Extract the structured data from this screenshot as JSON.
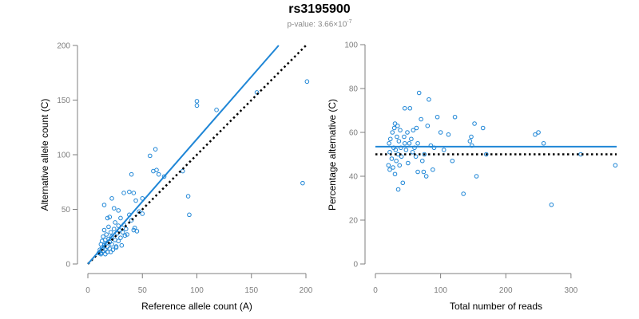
{
  "header": {
    "title": "rs3195900",
    "pvalue_prefix": "p-value: 3.66×10",
    "pvalue_exponent": "-7"
  },
  "colors": {
    "points": "#1f86d6",
    "fit_line": "#1f86d6",
    "reference_line": "#000000",
    "axis": "#7f7f7f"
  },
  "chart_data": [
    {
      "type": "scatter",
      "xlabel": "Reference allele count (A)",
      "ylabel": "Alternative allele count (C)",
      "xlim": [
        0,
        200
      ],
      "ylim": [
        0,
        200
      ],
      "xticks": [
        0,
        50,
        100,
        150,
        200
      ],
      "yticks": [
        0,
        50,
        100,
        150,
        200
      ],
      "fit_line": {
        "x": [
          0,
          175
        ],
        "y": [
          0,
          200
        ]
      },
      "reference_line": {
        "x": [
          0,
          200
        ],
        "y": [
          0,
          200
        ]
      },
      "points": [
        [
          10,
          10
        ],
        [
          11,
          13
        ],
        [
          12,
          10
        ],
        [
          12,
          18
        ],
        [
          13,
          15
        ],
        [
          13,
          21
        ],
        [
          14,
          12
        ],
        [
          14,
          25
        ],
        [
          15,
          17
        ],
        [
          15,
          31
        ],
        [
          16,
          13
        ],
        [
          16,
          22
        ],
        [
          17,
          19
        ],
        [
          17,
          27
        ],
        [
          18,
          11
        ],
        [
          18,
          16
        ],
        [
          19,
          23
        ],
        [
          19,
          34
        ],
        [
          20,
          14
        ],
        [
          20,
          20
        ],
        [
          21,
          29
        ],
        [
          22,
          18
        ],
        [
          22,
          25
        ],
        [
          23,
          13
        ],
        [
          24,
          32
        ],
        [
          25,
          22
        ],
        [
          25,
          38
        ],
        [
          26,
          16
        ],
        [
          27,
          28
        ],
        [
          28,
          35
        ],
        [
          29,
          31
        ],
        [
          30,
          24
        ],
        [
          30,
          42
        ],
        [
          31,
          17
        ],
        [
          32,
          29
        ],
        [
          33,
          36
        ],
        [
          35,
          32
        ],
        [
          36,
          27
        ],
        [
          38,
          45
        ],
        [
          40,
          40
        ],
        [
          42,
          31
        ],
        [
          43,
          33
        ],
        [
          45,
          30
        ],
        [
          47,
          48
        ],
        [
          50,
          46
        ],
        [
          15,
          54
        ],
        [
          18,
          42
        ],
        [
          22,
          60
        ],
        [
          24,
          51
        ],
        [
          33,
          65
        ],
        [
          38,
          66
        ],
        [
          40,
          82
        ],
        [
          42,
          65
        ],
        [
          50,
          60
        ],
        [
          57,
          99
        ],
        [
          60,
          85
        ],
        [
          62,
          105
        ],
        [
          63,
          86
        ],
        [
          65,
          82
        ],
        [
          70,
          80
        ],
        [
          87,
          85
        ],
        [
          92,
          62
        ],
        [
          93,
          45
        ],
        [
          100,
          149
        ],
        [
          100,
          145
        ],
        [
          118,
          141
        ],
        [
          155,
          157
        ],
        [
          197,
          74
        ],
        [
          201,
          167
        ],
        [
          12,
          9
        ],
        [
          16,
          9
        ],
        [
          21,
          11
        ],
        [
          26,
          15
        ],
        [
          28,
          21
        ],
        [
          34,
          26
        ],
        [
          20,
          43
        ],
        [
          28,
          49
        ],
        [
          44,
          58
        ]
      ]
    },
    {
      "type": "scatter",
      "xlabel": "Total number of reads",
      "ylabel": "Percentage alternative (C)",
      "xlim": [
        0,
        370
      ],
      "ylim": [
        0,
        100
      ],
      "xticks": [
        0,
        100,
        200,
        300
      ],
      "yticks": [
        0,
        20,
        40,
        60,
        80,
        100
      ],
      "fit_line": {
        "x": [
          0,
          370
        ],
        "y": [
          53.5,
          53.5
        ]
      },
      "reference_line": {
        "x": [
          0,
          370
        ],
        "y": [
          50,
          50
        ]
      },
      "points": [
        [
          20,
          45
        ],
        [
          21,
          55
        ],
        [
          22,
          51
        ],
        [
          22,
          43
        ],
        [
          23,
          57
        ],
        [
          25,
          48
        ],
        [
          26,
          60
        ],
        [
          27,
          44
        ],
        [
          28,
          53
        ],
        [
          29,
          62
        ],
        [
          30,
          64
        ],
        [
          30,
          41
        ],
        [
          31,
          52
        ],
        [
          32,
          47
        ],
        [
          33,
          58
        ],
        [
          34,
          63
        ],
        [
          35,
          34
        ],
        [
          35,
          50
        ],
        [
          36,
          56
        ],
        [
          37,
          45
        ],
        [
          38,
          61
        ],
        [
          39,
          53
        ],
        [
          40,
          49
        ],
        [
          42,
          37
        ],
        [
          44,
          58
        ],
        [
          45,
          71
        ],
        [
          45,
          55
        ],
        [
          47,
          52
        ],
        [
          49,
          60
        ],
        [
          50,
          46
        ],
        [
          52,
          55
        ],
        [
          53,
          71
        ],
        [
          55,
          57
        ],
        [
          57,
          51
        ],
        [
          58,
          61
        ],
        [
          60,
          53
        ],
        [
          62,
          49
        ],
        [
          63,
          62
        ],
        [
          65,
          42
        ],
        [
          65,
          55
        ],
        [
          67,
          78
        ],
        [
          70,
          66
        ],
        [
          72,
          47
        ],
        [
          74,
          42
        ],
        [
          75,
          50
        ],
        [
          78,
          40
        ],
        [
          80,
          63
        ],
        [
          82,
          75
        ],
        [
          85,
          54
        ],
        [
          88,
          43
        ],
        [
          90,
          53
        ],
        [
          95,
          67
        ],
        [
          100,
          60
        ],
        [
          105,
          52
        ],
        [
          112,
          59
        ],
        [
          118,
          47
        ],
        [
          122,
          67
        ],
        [
          135,
          32
        ],
        [
          145,
          56
        ],
        [
          147,
          58
        ],
        [
          148,
          54
        ],
        [
          152,
          64
        ],
        [
          155,
          40
        ],
        [
          165,
          62
        ],
        [
          170,
          50
        ],
        [
          245,
          59
        ],
        [
          250,
          60
        ],
        [
          258,
          55
        ],
        [
          270,
          27
        ],
        [
          315,
          50
        ],
        [
          368,
          45
        ]
      ]
    }
  ]
}
